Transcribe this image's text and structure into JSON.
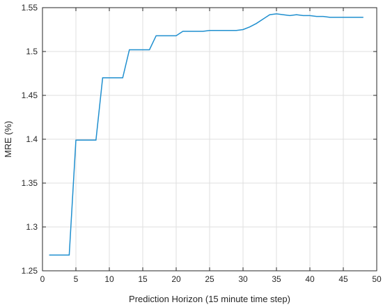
{
  "chart_data": {
    "type": "line",
    "title": "",
    "xlabel": "Prediction Horizon (15 minute time step)",
    "ylabel": "MRE (%)",
    "xlim": [
      0,
      50
    ],
    "ylim": [
      1.25,
      1.55
    ],
    "grid": true,
    "x_ticks": [
      "0",
      "5",
      "10",
      "15",
      "20",
      "25",
      "30",
      "35",
      "40",
      "45",
      "50"
    ],
    "y_ticks": [
      "1.25",
      "1.3",
      "1.35",
      "1.4",
      "1.45",
      "1.5",
      "1.55"
    ],
    "line_color": "#1f8fcf",
    "series": [
      {
        "x": [
          1,
          2,
          3,
          4,
          5,
          6,
          7,
          8,
          9,
          10,
          11,
          12,
          13,
          14,
          15,
          16,
          17,
          18,
          19,
          20,
          21,
          22,
          23,
          24,
          25,
          26,
          27,
          28,
          29,
          30,
          31,
          32,
          33,
          34,
          35,
          36,
          37,
          38,
          39,
          40,
          41,
          42,
          43,
          44,
          45,
          46,
          47,
          48
        ],
        "y": [
          1.268,
          1.268,
          1.268,
          1.268,
          1.399,
          1.399,
          1.399,
          1.399,
          1.47,
          1.47,
          1.47,
          1.47,
          1.502,
          1.502,
          1.502,
          1.502,
          1.518,
          1.518,
          1.518,
          1.518,
          1.523,
          1.523,
          1.523,
          1.523,
          1.524,
          1.524,
          1.524,
          1.524,
          1.524,
          1.525,
          1.528,
          1.532,
          1.537,
          1.542,
          1.543,
          1.542,
          1.541,
          1.542,
          1.541,
          1.541,
          1.54,
          1.54,
          1.539,
          1.539,
          1.539,
          1.539,
          1.539,
          1.539
        ]
      }
    ]
  }
}
